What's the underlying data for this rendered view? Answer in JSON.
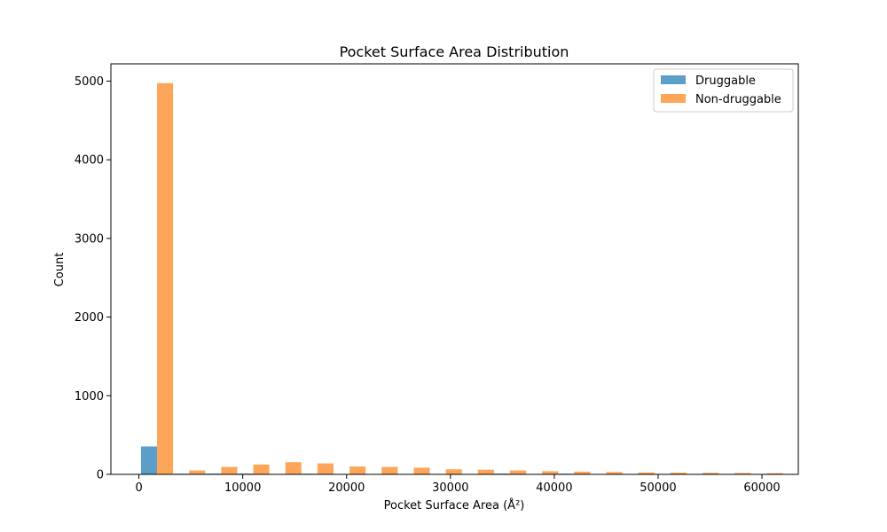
{
  "chart_data": {
    "type": "bar",
    "title": "Pocket Surface Area Distribution",
    "xlabel": "Pocket Surface Area (Å²)",
    "ylabel": "Count",
    "xlim": [
      -2700,
      63500
    ],
    "ylim": [
      0,
      5220
    ],
    "xticks": [
      0,
      10000,
      20000,
      30000,
      40000,
      50000,
      60000
    ],
    "yticks": [
      0,
      1000,
      2000,
      3000,
      4000,
      5000
    ],
    "grid": false,
    "legend_position": "top-right",
    "bin_start": 200,
    "bin_width": 3090,
    "bin_count": 20,
    "series": [
      {
        "name": "Druggable",
        "color": "#5b9ec9",
        "values": [
          355,
          8,
          10,
          10,
          0,
          8,
          0,
          0,
          0,
          0,
          0,
          10,
          0,
          8,
          0,
          0,
          0,
          0,
          0,
          0
        ]
      },
      {
        "name": "Non-druggable",
        "color": "#fda65a",
        "values": [
          4975,
          50,
          95,
          125,
          155,
          140,
          100,
          95,
          85,
          65,
          60,
          50,
          40,
          35,
          30,
          25,
          22,
          20,
          18,
          15
        ]
      }
    ]
  }
}
